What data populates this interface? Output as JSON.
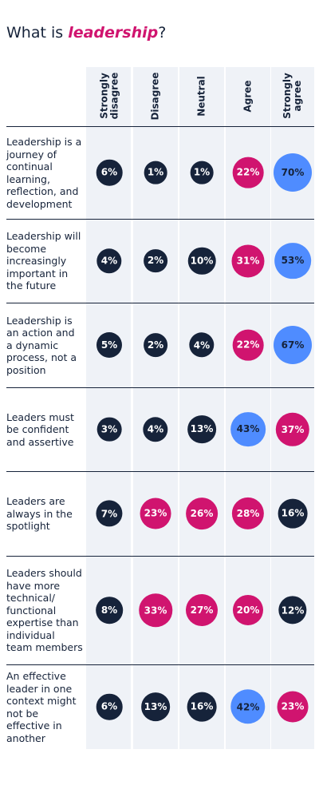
{
  "title": {
    "prefix": "What is ",
    "emphasis": "leadership",
    "suffix": "?"
  },
  "colors": {
    "dark": "#16233a",
    "magenta": "#d0146f",
    "blue": "#4f8cff",
    "column_bg": "#eff2f7"
  },
  "chart_data": {
    "type": "table",
    "title": "What is leadership?",
    "columns": [
      "Strongly disagree",
      "Disagree",
      "Neutral",
      "Agree",
      "Strongly agree"
    ],
    "rows": [
      {
        "label": "Leadership is a journey of continual learning, reflection, and development",
        "values": [
          6,
          1,
          1,
          22,
          70
        ],
        "colors": [
          "dark",
          "dark",
          "dark",
          "magenta",
          "blue"
        ]
      },
      {
        "label": "Leadership will become increasingly important in the future",
        "values": [
          4,
          2,
          10,
          31,
          53
        ],
        "colors": [
          "dark",
          "dark",
          "dark",
          "magenta",
          "blue"
        ]
      },
      {
        "label": "Leadership is an action and a dynamic process, not a position",
        "values": [
          5,
          2,
          4,
          22,
          67
        ],
        "colors": [
          "dark",
          "dark",
          "dark",
          "magenta",
          "blue"
        ]
      },
      {
        "label": "Leaders must be confident and assertive",
        "values": [
          3,
          4,
          13,
          43,
          37
        ],
        "colors": [
          "dark",
          "dark",
          "dark",
          "blue",
          "magenta"
        ]
      },
      {
        "label": "Leaders are always in the spotlight",
        "values": [
          7,
          23,
          26,
          28,
          16
        ],
        "colors": [
          "dark",
          "magenta",
          "magenta",
          "magenta",
          "dark"
        ]
      },
      {
        "label": "Leaders should have more technical/ functional expertise than individual team members",
        "values": [
          8,
          33,
          27,
          20,
          12
        ],
        "colors": [
          "dark",
          "magenta",
          "magenta",
          "magenta",
          "dark"
        ]
      },
      {
        "label": "An effective leader in one context might not be effective in another",
        "values": [
          6,
          13,
          16,
          42,
          23
        ],
        "colors": [
          "dark",
          "dark",
          "dark",
          "blue",
          "magenta"
        ]
      }
    ],
    "value_suffix": "%"
  }
}
